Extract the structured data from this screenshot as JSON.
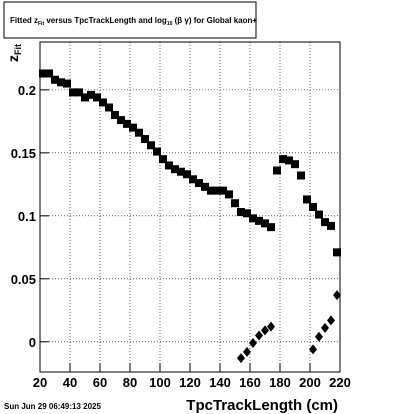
{
  "chart_data": {
    "type": "scatter",
    "title": [
      "Fitted  z",
      "Fit",
      "  versus TpcTrackLength and log",
      "10",
      " (β  γ) for Global kaon+"
    ],
    "xlabel": "TpcTrackLength (cm)",
    "ylabel": [
      "z",
      "Fit"
    ],
    "footer": "Sun Jun 29 06:49:13 2025",
    "xlim": [
      20,
      220
    ],
    "ylim": [
      -0.024,
      0.238
    ],
    "xticks": [
      20,
      40,
      60,
      80,
      100,
      120,
      140,
      160,
      180,
      200,
      220
    ],
    "yticks": [
      0,
      0.05,
      0.1,
      0.15,
      0.2
    ],
    "grid": true,
    "series": [
      {
        "marker": "square",
        "color": "#000000",
        "x": [
          22,
          26,
          30,
          34,
          38,
          42,
          46,
          50,
          54,
          58,
          62,
          66,
          70,
          74,
          78,
          82,
          86,
          90,
          94,
          98,
          102,
          106,
          110,
          114,
          118,
          122,
          126,
          130,
          134,
          138,
          142,
          146,
          150,
          154,
          158,
          162,
          166,
          170,
          174,
          178,
          182,
          186,
          190,
          194,
          198,
          202,
          206,
          210,
          214,
          218
        ],
        "values": [
          0.213,
          0.213,
          0.208,
          0.206,
          0.205,
          0.198,
          0.198,
          0.194,
          0.196,
          0.194,
          0.19,
          0.186,
          0.18,
          0.176,
          0.173,
          0.17,
          0.166,
          0.161,
          0.156,
          0.151,
          0.145,
          0.14,
          0.137,
          0.135,
          0.133,
          0.129,
          0.126,
          0.123,
          0.12,
          0.12,
          0.12,
          0.117,
          0.11,
          0.103,
          0.102,
          0.098,
          0.096,
          0.094,
          0.091,
          0.136,
          0.145,
          0.144,
          0.141,
          0.132,
          0.113,
          0.107,
          0.101,
          0.095,
          0.092,
          0.071
        ]
      },
      {
        "marker": "diamond",
        "color": "#000000",
        "x": [
          154,
          158,
          162,
          166,
          170,
          174,
          202,
          206,
          210,
          214,
          218
        ],
        "values": [
          -0.013,
          -0.008,
          -0.001,
          0.005,
          0.009,
          0.012,
          -0.006,
          0.004,
          0.011,
          0.017,
          0.037
        ]
      }
    ]
  }
}
